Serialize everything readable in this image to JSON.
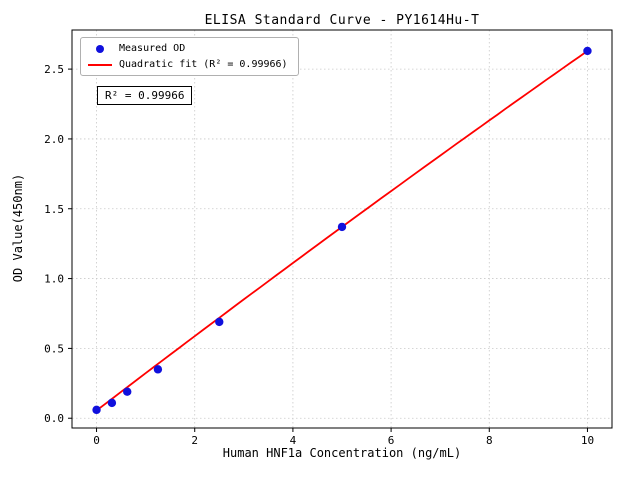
{
  "chart_data": {
    "type": "scatter",
    "title": "ELISA Standard Curve - PY1614Hu-T",
    "xlabel": "Human HNF1a Concentration (ng/mL)",
    "ylabel": "OD Value(450nm)",
    "xlim": [
      -0.5,
      10.5
    ],
    "ylim": [
      -0.07,
      2.78
    ],
    "x_ticks": [
      0,
      2,
      4,
      6,
      8,
      10
    ],
    "x_tick_labels": [
      "0",
      "2",
      "4",
      "6",
      "8",
      "10"
    ],
    "y_ticks": [
      0.0,
      0.5,
      1.0,
      1.5,
      2.0,
      2.5
    ],
    "y_tick_labels": [
      "0.0",
      "0.5",
      "1.0",
      "1.5",
      "2.0",
      "2.5"
    ],
    "grid": true,
    "series": [
      {
        "name": "Measured OD",
        "type": "scatter",
        "color": "#1010dd",
        "x": [
          0,
          0.313,
          0.625,
          1.25,
          2.5,
          5,
          10
        ],
        "y": [
          0.06,
          0.11,
          0.19,
          0.35,
          0.69,
          1.37,
          2.63
        ]
      },
      {
        "name": "Quadratic fit (R² = 0.99966)",
        "type": "line",
        "color": "#ff0000",
        "fit": {
          "a": 0.055,
          "b": 0.2685,
          "c": -0.0011,
          "x_start": 0,
          "x_end": 10,
          "r_squared": 0.99966
        }
      }
    ],
    "legend": {
      "position": "upper-left",
      "entries": [
        {
          "label": "Measured OD",
          "marker": "dot",
          "color": "#1010dd"
        },
        {
          "label": "Quadratic fit (R² = 0.99966)",
          "marker": "line",
          "color": "#ff0000"
        }
      ]
    },
    "annotation": "R² = 0.99966"
  }
}
